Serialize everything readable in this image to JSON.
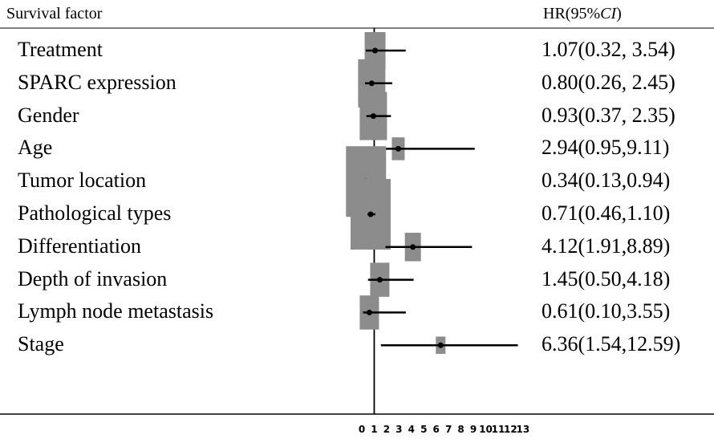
{
  "header": {
    "factor_label": "Survival factor",
    "hr_prefix": "HR(95%",
    "hr_italic": "CI",
    "hr_suffix": ")"
  },
  "chart_data": {
    "type": "forest",
    "title": "",
    "xlabel": "",
    "ylabel": "",
    "reference_line": 1,
    "xlim": [
      0,
      13
    ],
    "x_ticks": [
      "0",
      "1",
      "2",
      "3",
      "4",
      "5",
      "6",
      "7",
      "8",
      "9",
      "10",
      "11",
      "12",
      "13"
    ],
    "columns": [
      "Survival factor",
      "HR(95%CI)"
    ],
    "rows": [
      {
        "factor": "Treatment",
        "hr": 1.07,
        "lower": 0.32,
        "upper": 3.54,
        "weight": 0.4,
        "hr_text": "1.07(0.32, 3.54)"
      },
      {
        "factor": "SPARC expression",
        "hr": 0.8,
        "lower": 0.26,
        "upper": 2.45,
        "weight": 0.6,
        "hr_text": "0.80(0.26, 2.45)"
      },
      {
        "factor": "Gender",
        "hr": 0.93,
        "lower": 0.37,
        "upper": 2.35,
        "weight": 0.6,
        "hr_text": "0.93(0.37, 2.35)"
      },
      {
        "factor": "Age",
        "hr": 2.94,
        "lower": 0.95,
        "upper": 9.11,
        "weight": 0.15,
        "hr_text": "2.94(0.95,9.11)"
      },
      {
        "factor": "Tumor location",
        "hr": 0.34,
        "lower": 0.13,
        "upper": 0.94,
        "weight": 1.0,
        "hr_text": "0.34(0.13,0.94)"
      },
      {
        "factor": "Pathological types",
        "hr": 0.71,
        "lower": 0.46,
        "upper": 1.1,
        "weight": 1.0,
        "hr_text": "0.71(0.46,1.10)"
      },
      {
        "factor": "Differentiation",
        "hr": 4.12,
        "lower": 1.91,
        "upper": 8.89,
        "weight": 0.25,
        "hr_text": "4.12(1.91,8.89)"
      },
      {
        "factor": "Depth of invasion",
        "hr": 1.45,
        "lower": 0.5,
        "upper": 4.18,
        "weight": 0.35,
        "hr_text": "1.45(0.50,4.18)"
      },
      {
        "factor": "Lymph node metastasis",
        "hr": 0.61,
        "lower": 0.1,
        "upper": 3.55,
        "weight": 0.35,
        "hr_text": "0.61(0.10,3.55)"
      },
      {
        "factor": "Stage",
        "hr": 6.36,
        "lower": 1.54,
        "upper": 12.59,
        "weight": 0.05,
        "hr_text": "6.36(1.54,12.59)"
      }
    ]
  },
  "colors": {
    "box": "#8c8c8c",
    "line": "#000000"
  }
}
